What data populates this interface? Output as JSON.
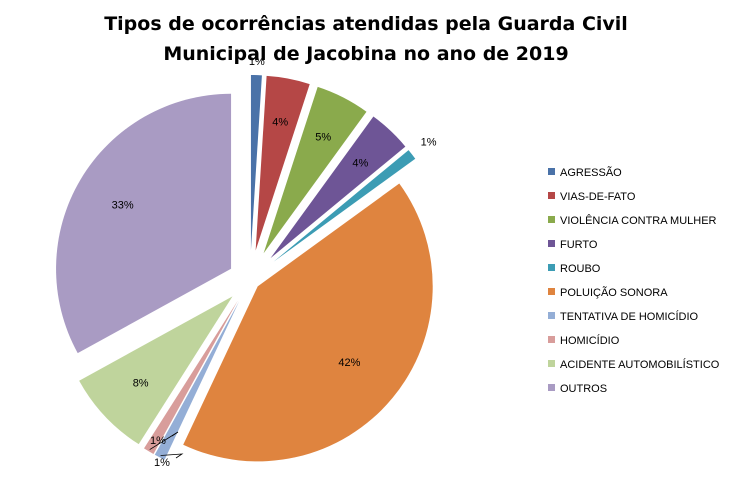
{
  "chart_data": {
    "type": "pie",
    "title_lines": [
      "Tipos de ocorrências atendidas pela Guarda Civil",
      "Municipal de Jacobina no ano de 2019"
    ],
    "legend_position": "right",
    "slices": [
      {
        "label": "AGRESSÃO",
        "value": 1,
        "display": "1%",
        "color": "#4a72a8"
      },
      {
        "label": "VIAS-DE-FATO",
        "value": 4,
        "display": "4%",
        "color": "#b54746"
      },
      {
        "label": "VIOLÊNCIA CONTRA MULHER",
        "value": 5,
        "display": "5%",
        "color": "#8aaa4c"
      },
      {
        "label": "FURTO",
        "value": 4,
        "display": "4%",
        "color": "#6e5596"
      },
      {
        "label": "ROUBO",
        "value": 1,
        "display": "1%",
        "color": "#3c9cb4"
      },
      {
        "label": "POLUIÇÃO SONORA",
        "value": 42,
        "display": "42%",
        "color": "#df843f"
      },
      {
        "label": "TENTATIVA DE HOMICÍDIO",
        "value": 1,
        "display": "1%",
        "color": "#94aed6"
      },
      {
        "label": "HOMICÍDIO",
        "value": 1,
        "display": "1%",
        "color": "#d89d9b"
      },
      {
        "label": "ACIDENTE AUTOMOBILÍSTICO",
        "value": 8,
        "display": "8%",
        "color": "#bfd49c"
      },
      {
        "label": "OUTROS",
        "value": 33,
        "display": "33%",
        "color": "#a99bc3"
      }
    ]
  }
}
